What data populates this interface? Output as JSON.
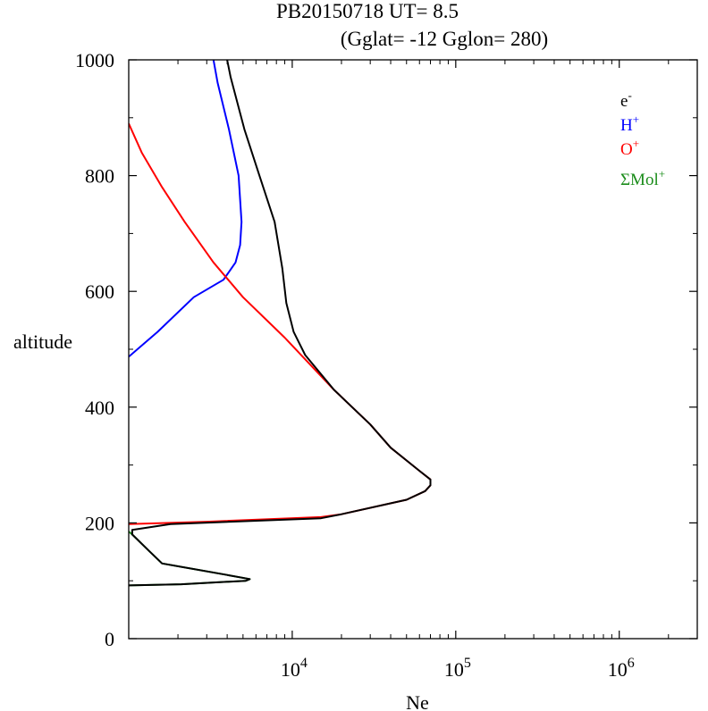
{
  "chart_data": {
    "type": "line",
    "title": "PB20150718   UT=  8.5",
    "subtitle": "(Gglat= -12   Gglon=  280)",
    "xlabel": "Ne",
    "ylabel": "altitude",
    "xscale": "log",
    "xlim": [
      1000,
      3000000
    ],
    "ylim": [
      0,
      1000
    ],
    "y_ticks": [
      0,
      200,
      400,
      600,
      800,
      1000
    ],
    "y_tick_labels": [
      "0",
      "200",
      "400",
      "600",
      "800",
      "1000"
    ],
    "x_ticks": [
      10000,
      100000,
      1000000
    ],
    "x_tick_labels": [
      {
        "base": "10",
        "exp": "4"
      },
      {
        "base": "10",
        "exp": "5"
      },
      {
        "base": "10",
        "exp": "6"
      }
    ],
    "legend_position": "top-right",
    "series": [
      {
        "name": "e",
        "name_sup": "-",
        "color": "#000000",
        "points": [
          [
            1000,
            92
          ],
          [
            2100,
            94
          ],
          [
            5200,
            100
          ],
          [
            5500,
            103
          ],
          [
            4000,
            110
          ],
          [
            1600,
            130
          ],
          [
            1350,
            150
          ],
          [
            1050,
            180
          ],
          [
            1050,
            188
          ],
          [
            1800,
            198
          ],
          [
            15000,
            208
          ],
          [
            20000,
            215
          ],
          [
            50000,
            240
          ],
          [
            65000,
            255
          ],
          [
            70000,
            265
          ],
          [
            70000,
            275
          ],
          [
            60000,
            290
          ],
          [
            40000,
            330
          ],
          [
            30000,
            370
          ],
          [
            18000,
            430
          ],
          [
            12000,
            490
          ],
          [
            10200,
            530
          ],
          [
            9200,
            580
          ],
          [
            8700,
            640
          ],
          [
            7800,
            720
          ],
          [
            6300,
            800
          ],
          [
            5100,
            880
          ],
          [
            4200,
            970
          ],
          [
            4000,
            1000
          ]
        ]
      },
      {
        "name": "H",
        "name_sup": "+",
        "color": "#0000ff",
        "points": [
          [
            1000,
            487
          ],
          [
            1500,
            530
          ],
          [
            2500,
            590
          ],
          [
            3800,
            620
          ],
          [
            4500,
            650
          ],
          [
            4800,
            680
          ],
          [
            4900,
            720
          ],
          [
            4700,
            800
          ],
          [
            4100,
            880
          ],
          [
            3500,
            960
          ],
          [
            3300,
            1000
          ]
        ]
      },
      {
        "name": "O",
        "name_sup": "+",
        "color": "#ff0000",
        "points": [
          [
            1000,
            198
          ],
          [
            3000,
            202
          ],
          [
            15000,
            210
          ],
          [
            20000,
            215
          ],
          [
            50000,
            240
          ],
          [
            65000,
            255
          ],
          [
            70000,
            265
          ],
          [
            70000,
            275
          ],
          [
            60000,
            290
          ],
          [
            40000,
            330
          ],
          [
            30000,
            370
          ],
          [
            18000,
            430
          ],
          [
            9000,
            520
          ],
          [
            5000,
            590
          ],
          [
            3300,
            650
          ],
          [
            2200,
            720
          ],
          [
            1600,
            780
          ],
          [
            1200,
            840
          ],
          [
            1000,
            890
          ]
        ]
      },
      {
        "name": "ΣMol",
        "name_sup": "+",
        "color": "#1a8c1a",
        "points": [
          [
            1000,
            185
          ],
          [
            1050,
            180
          ],
          [
            1350,
            150
          ],
          [
            1600,
            130
          ],
          [
            4000,
            110
          ],
          [
            5500,
            103
          ],
          [
            5200,
            100
          ],
          [
            2100,
            94
          ],
          [
            1000,
            92
          ]
        ]
      }
    ]
  }
}
